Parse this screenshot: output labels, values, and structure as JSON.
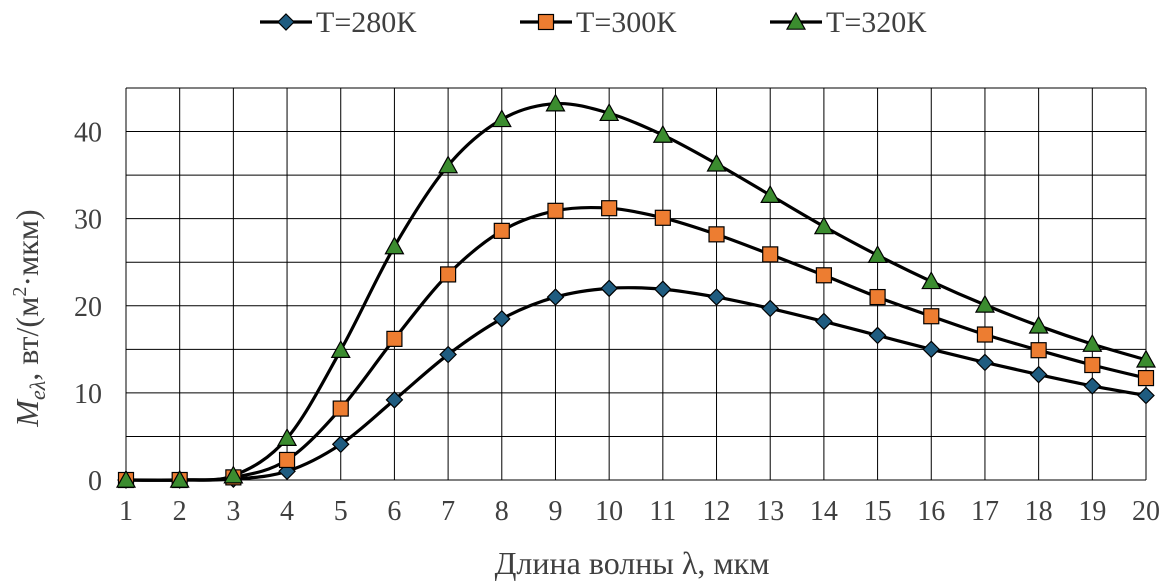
{
  "chart_data": {
    "type": "line",
    "title": "",
    "xlabel": "Длина волны λ, мкм",
    "ylabel": {
      "symbol": "M",
      "subscript": "eλ",
      "units_pre": ",  вт/(м",
      "units_sup": "2",
      "units_post": "·мкм)"
    },
    "x": [
      1,
      2,
      3,
      4,
      5,
      6,
      7,
      8,
      9,
      10,
      11,
      12,
      13,
      14,
      15,
      16,
      17,
      18,
      19,
      20
    ],
    "xticks": [
      "1",
      "2",
      "3",
      "4",
      "5",
      "6",
      "7",
      "8",
      "9",
      "10",
      "11",
      "12",
      "13",
      "14",
      "15",
      "16",
      "17",
      "18",
      "19",
      "20"
    ],
    "xlim": [
      1,
      20
    ],
    "ylim": [
      0,
      45
    ],
    "yticks": [
      0,
      10,
      20,
      30,
      40
    ],
    "grid": true,
    "legend_position": "top",
    "series": [
      {
        "name": "T=280К",
        "marker": "diamond",
        "color": "#1f5c80",
        "values": [
          0,
          0,
          0.1,
          1.0,
          4.1,
          9.2,
          14.4,
          18.5,
          21.0,
          22.0,
          21.9,
          21.0,
          19.7,
          18.2,
          16.6,
          15.0,
          13.5,
          12.1,
          10.8,
          9.7
        ]
      },
      {
        "name": "T=300К",
        "marker": "square",
        "color": "#ed7d31",
        "values": [
          0,
          0,
          0.3,
          2.3,
          8.2,
          16.2,
          23.6,
          28.6,
          30.9,
          31.2,
          30.1,
          28.2,
          25.9,
          23.5,
          21.0,
          18.8,
          16.7,
          14.9,
          13.2,
          11.7
        ]
      },
      {
        "name": "T=320К",
        "marker": "triangle",
        "color": "#3b8c2f",
        "values": [
          0,
          0,
          0.5,
          4.8,
          14.9,
          26.8,
          36.1,
          41.4,
          43.2,
          42.1,
          39.6,
          36.3,
          32.7,
          29.1,
          25.8,
          22.8,
          20.1,
          17.7,
          15.6,
          13.8
        ]
      }
    ]
  }
}
